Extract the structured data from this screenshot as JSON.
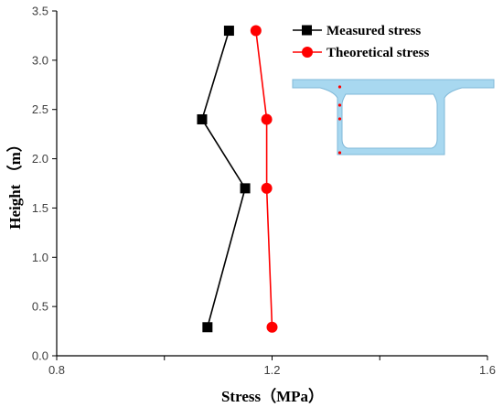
{
  "chart_data": {
    "type": "line",
    "xlabel": "Stress（MPa）",
    "ylabel": "Height （m）",
    "xlim": [
      0.8,
      1.6
    ],
    "ylim": [
      0.0,
      3.5
    ],
    "xticks": [
      0.8,
      1.0,
      1.2,
      1.4,
      1.6
    ],
    "xtick_labels": [
      "0.8",
      "",
      "1.2",
      "",
      "1.6"
    ],
    "yticks": [
      0.0,
      0.5,
      1.0,
      1.5,
      2.0,
      2.5,
      3.0,
      3.5
    ],
    "ytick_labels": [
      "0.0",
      "0.5",
      "1.0",
      "1.5",
      "2.0",
      "2.5",
      "3.0",
      "3.5"
    ],
    "grid": false,
    "legend_position": "top-right",
    "series": [
      {
        "name": "Measured stress",
        "color": "#000000",
        "marker": "square",
        "points": [
          [
            1.12,
            3.3
          ],
          [
            1.07,
            2.4
          ],
          [
            1.15,
            1.7
          ],
          [
            1.08,
            0.29
          ]
        ]
      },
      {
        "name": "Theoretical stress",
        "color": "#ff0000",
        "marker": "circle",
        "points": [
          [
            1.17,
            3.3
          ],
          [
            1.19,
            2.4
          ],
          [
            1.19,
            1.7
          ],
          [
            1.2,
            0.29
          ]
        ]
      }
    ],
    "inset": {
      "description_icon": "box-girder-cross-section-icon",
      "fill_color": "#a8d8f0",
      "stroke_color": "#7fb8d8",
      "sensor_color": "#ff0000",
      "sensor_count": 4
    }
  }
}
